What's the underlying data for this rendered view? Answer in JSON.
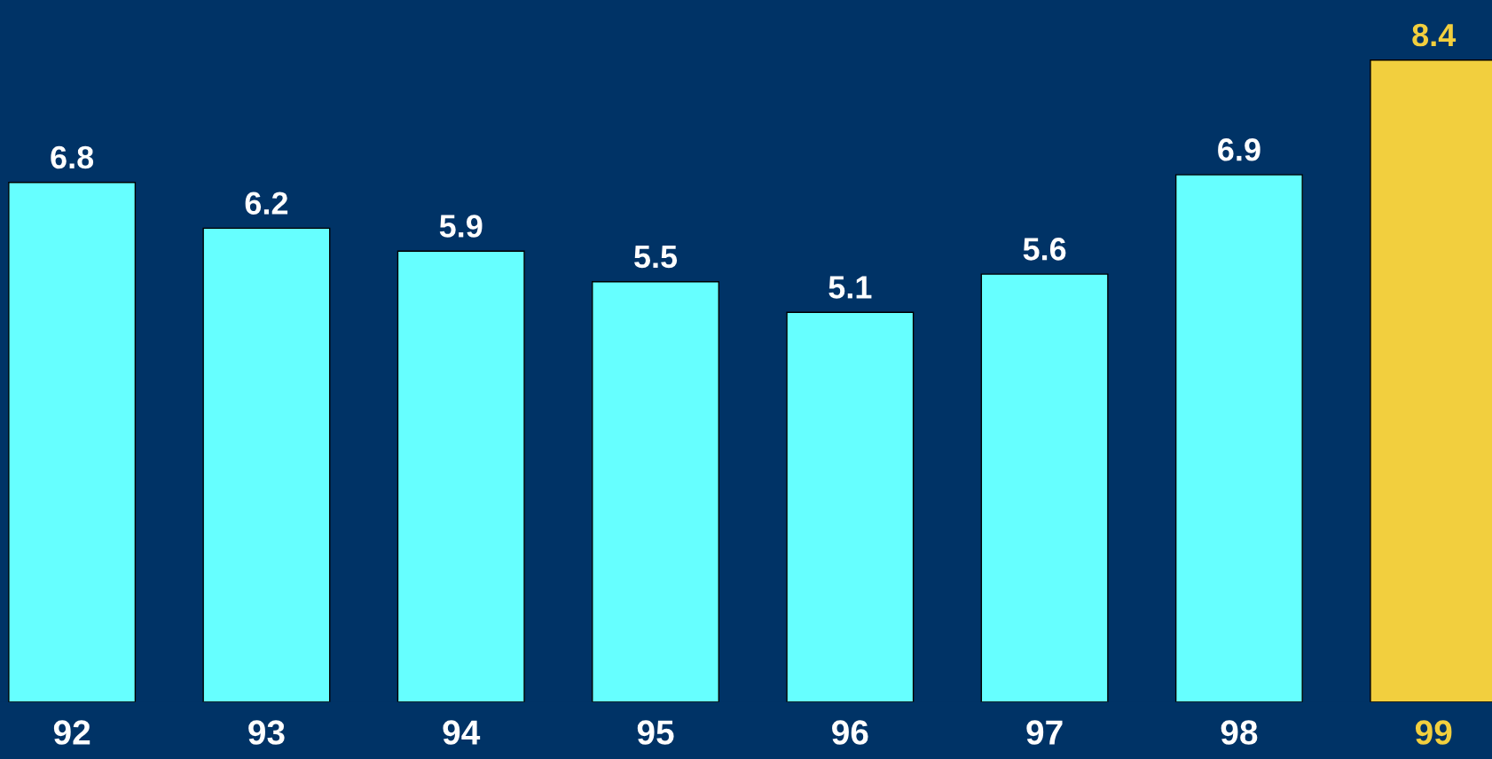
{
  "chart_data": {
    "type": "bar",
    "categories": [
      "92",
      "93",
      "94",
      "95",
      "96",
      "97",
      "98",
      "99"
    ],
    "values": [
      6.8,
      6.2,
      5.9,
      5.5,
      5.1,
      5.6,
      6.9,
      8.4
    ],
    "colors": [
      "#66ffff",
      "#66ffff",
      "#66ffff",
      "#66ffff",
      "#66ffff",
      "#66ffff",
      "#66ffff",
      "#f2cf3e"
    ],
    "data_labels": true,
    "grid": false,
    "legend": false
  }
}
